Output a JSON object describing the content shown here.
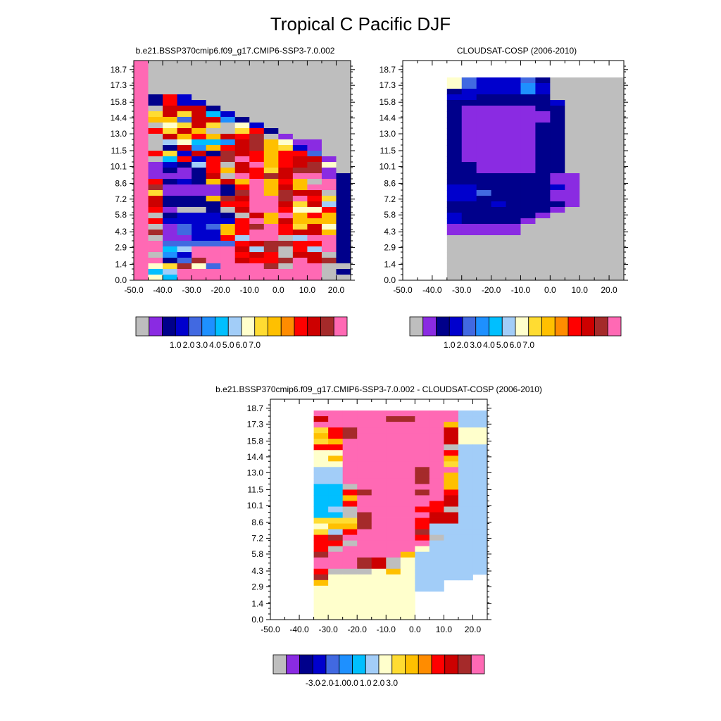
{
  "figure": {
    "title": "Tropical C Pacific DJF"
  },
  "palette": {
    "missing": "#bebebe",
    "colors": [
      "#8a2be2",
      "#00008b",
      "#0000cd",
      "#4169e1",
      "#1e90ff",
      "#00bfff",
      "#a2cdf8",
      "#ffffcc",
      "#ffdc32",
      "#ffc000",
      "#ff8c00",
      "#ff0000",
      "#cd0000",
      "#a52a2a",
      "#ff69b4"
    ]
  },
  "chart_data": [
    {
      "type": "heatmap",
      "panel": "model",
      "title": "b.e21.BSSP370cmip6.f09_g17.CMIP6-SSP3-7.0.002",
      "xlim": [
        -50,
        25
      ],
      "ylim": [
        0,
        19.5
      ],
      "xticks": [
        "-50.0",
        "-40.0",
        "-30.0",
        "-20.0",
        "-10.0",
        "0.0",
        "10.0",
        "20.0"
      ],
      "yticks": [
        "0.0",
        "1.4",
        "2.9",
        "4.3",
        "5.8",
        "7.2",
        "8.6",
        "10.1",
        "11.5",
        "13.0",
        "14.4",
        "15.8",
        "17.3",
        "18.7"
      ],
      "ytick_values": [
        0.0,
        1.4,
        2.9,
        4.3,
        5.8,
        7.2,
        8.6,
        10.1,
        11.5,
        13.0,
        14.4,
        15.8,
        17.3,
        18.7
      ],
      "x_edges": [
        -50,
        -45,
        -40,
        -35,
        -30,
        -25,
        -20,
        -15,
        -10,
        -5,
        0,
        5,
        10,
        15,
        20,
        25
      ],
      "y_edges": [
        0,
        0.5,
        1,
        1.5,
        2,
        2.5,
        3,
        3.5,
        4,
        4.5,
        5,
        5.5,
        6,
        6.5,
        7,
        7.5,
        8,
        8.5,
        9,
        9.5,
        10,
        10.5,
        11,
        11.5,
        12,
        12.5,
        13,
        13.5,
        14,
        14.5,
        15,
        15.5,
        16,
        16.5,
        17,
        17.5,
        18,
        18.5,
        19,
        19.5
      ],
      "grid": [
        "EAAAAAAAAAAAAAA",
        "EAAAAAAAAAAAAAA",
        "EAAAAAAAAAAAAAA",
        "EAAAAAAAAAAAAAA",
        "EAAAAAAAAAAAAAA",
        "EAAAAAAAAAAAAAA",
        "E1B2AAAAAAAAAAA",
        "E1B22AAAAAAAAAA",
        "EMCCC1AAAAAAAAA",
        "E8C8C52AAAAAAAA",
        "E993CC41AAAAAAA",
        "EA78C8A72AAAAAA",
        "EB8C9AA8B1AAAAA",
        "EAC9B9CBDA0AAAA",
        "EA67554CD9700AA",
        "EA1C49BCD9820AA",
        "EB82C1DCB9BB3AA",
        "EA5B2BDEB9BCC0A",
        "E0216BACE9BCD7A",
        "E0101B9CB8CDD0A",
        "E0001CAEBDCEE01",
        "EB1219C9E9B9AE1",
        "ED00001BE9C9EE1",
        "E800001DE9DCCA1",
        "EC1119DCEEDEB81",
        "EC1111BBEEC8C61",
        "EB0AA1ACEEB77B1",
        "EA12221AC9E9B91",
        "EB22222BE9C9991",
        "EA03239BDEB8C71",
        "ED03229BEEBCC91",
        "EA0022B6EEA6EE1",
        "EE33333BCDDBBE1",
        "EE56EEEC6DAB6E1",
        "EA42EEEBCBACCA1",
        "EE13DEECBBDECD1",
        "E78D73EEEDAEEAA",
        "E56EEEEEEEEEEA1",
        "E75EEEEEEEEEEAA"
      ],
      "colorbar": {
        "labels": [
          "1.0",
          "2.0",
          "3.0",
          "4.0",
          "5.0",
          "6.0",
          "7.0"
        ]
      }
    },
    {
      "type": "heatmap",
      "panel": "obs",
      "title": "CLOUDSAT-COSP (2006-2010)",
      "xlim": [
        -50,
        25
      ],
      "ylim": [
        0,
        19.5
      ],
      "xticks": [
        "-50.0",
        "-40.0",
        "-30.0",
        "-20.0",
        "-10.0",
        "0.0",
        "10.0",
        "20.0"
      ],
      "yticks": [
        "0.0",
        "1.4",
        "2.9",
        "4.3",
        "5.8",
        "7.2",
        "8.6",
        "10.1",
        "11.5",
        "13.0",
        "14.4",
        "15.8",
        "17.3",
        "18.7"
      ],
      "ytick_values": [
        0.0,
        1.4,
        2.9,
        4.3,
        5.8,
        7.2,
        8.6,
        10.1,
        11.5,
        13.0,
        14.4,
        15.8,
        17.3,
        18.7
      ],
      "x_edges": [
        -50,
        -45,
        -40,
        -35,
        -30,
        -25,
        -20,
        -15,
        -10,
        -5,
        0,
        5,
        10,
        15,
        20,
        25
      ],
      "y_edges": [
        0,
        0.5,
        1,
        1.5,
        2,
        2.5,
        3,
        3.5,
        4,
        4.5,
        5,
        5.5,
        6,
        6.5,
        7,
        7.5,
        8,
        8.5,
        9,
        9.5,
        10,
        10.5,
        11,
        11.5,
        12,
        12.5,
        13,
        13.5,
        14,
        14.5,
        15,
        15.5,
        16,
        16.5,
        17,
        17.5,
        18,
        18.5,
        19,
        19.5
      ],
      "grid": [
        "...............",
        "...............",
        "...............",
        "...7322231AAAAA",
        "...7322242AAAAA",
        "...1222242AAAAA",
        "...2211111AAAAA",
        "...11111112AAAA",
        "...10000011AAAA",
        "...10000001AAAA",
        "...10000001AAAA",
        "...10000011AAAA",
        "...10000011AAAA",
        "...10000011AAAA",
        "...10000011AAAA",
        "...10000011AAAA",
        "...10000011AAAA",
        "...10000011AAAA",
        "...11000011AAAA",
        "...11000011AAAA",
        "...111111100AAA",
        "...111111100AAA",
        "...221111120AAA",
        "...223111100AAA",
        "...221111100AAA",
        "...111211110AAA",
        "...11111110AAAA",
        "...2111110AAAAA",
        "...211110AAAAAA",
        "...00000AAAAAAA",
        "...00000AAAAAAA",
        "...AAAAAAAAAAAA",
        "...AAAAAAAAAAAA",
        "...AAAAAAAAAAAA",
        "...AAAAAAAAAAAA",
        "...AAAAAAAAAAAA",
        "...AAAAAAAAAAAA",
        "...AAAAAAAAAAAA",
        "...AAAAAAAAAAAA"
      ],
      "colorbar": {
        "labels": [
          "1.0",
          "2.0",
          "3.0",
          "4.0",
          "5.0",
          "6.0",
          "7.0"
        ]
      }
    },
    {
      "type": "heatmap",
      "panel": "difference",
      "title": "b.e21.BSSP370cmip6.f09_g17.CMIP6-SSP3-7.0.002 - CLOUDSAT-COSP (2006-2010)",
      "xlim": [
        -50,
        25
      ],
      "ylim": [
        0,
        19.5
      ],
      "xticks": [
        "-50.0",
        "-40.0",
        "-30.0",
        "-20.0",
        "-10.0",
        "0.0",
        "10.0",
        "20.0"
      ],
      "yticks": [
        "0.0",
        "1.4",
        "2.9",
        "4.3",
        "5.8",
        "7.2",
        "8.6",
        "10.1",
        "11.5",
        "13.0",
        "14.4",
        "15.8",
        "17.3",
        "18.7"
      ],
      "ytick_values": [
        0.0,
        1.4,
        2.9,
        4.3,
        5.8,
        7.2,
        8.6,
        10.1,
        11.5,
        13.0,
        14.4,
        15.8,
        17.3,
        18.7
      ],
      "x_edges": [
        -50,
        -45,
        -40,
        -35,
        -30,
        -25,
        -20,
        -15,
        -10,
        -5,
        0,
        5,
        10,
        15,
        20,
        25
      ],
      "y_edges": [
        0,
        0.5,
        1,
        1.5,
        2,
        2.5,
        3,
        3.5,
        4,
        4.5,
        5,
        5.5,
        6,
        6.5,
        7,
        7.5,
        8,
        8.5,
        9,
        9.5,
        10,
        10.5,
        11,
        11.5,
        12,
        12.5,
        13,
        13.5,
        14,
        14.5,
        15,
        15.5,
        16,
        16.5,
        17,
        17.5,
        18,
        18.5,
        19,
        19.5
      ],
      "grid": [
        "...............",
        "...............",
        "...EEEEEEEEEE66",
        "...CEEEEDDEEE66",
        "...EEEEEEEEE966",
        "...8BDEEEEEEC77",
        "...9BDEEEEEEC77",
        "...89EEEEEEEC77",
        "...BBEEEEEEEA66",
        "...77EEEEEEEB66",
        "...79EEEEEEE966",
        "...77EEEEEEE866",
        "...66EEEEEDEE66",
        "...66EEEEEDE966",
        "...66EEEEEDE966",
        "...55AEEEEEE966",
        "...55BDEEEDEB66",
        "...559EEEEEEC66",
        "...55BEEEEEBC66",
        "...56AEEEEBBA66",
        "...55ADEEEECC66",
        "...888DEEEBCC66",
        "...799DEEEB6666",
        "...86BEEEED6666",
        "...BDEEEEEBA666",
        "...BBAEEEEE6666",
        "...BAEEEEE76666",
        "...DEEEEE966666",
        "...EEEDCA766666",
        "...EEEDCA766666",
        "...BAAA79766666",
        "...D7777776666.",
        "...977777766...",
        "...777777766...",
        "...7777777.....",
        "...7777777.....",
        "...7777777.....",
        "...7777777.....",
        "...7777777....."
      ],
      "colorbar": {
        "labels": [
          "-3.0",
          "-2.0",
          "-1.0",
          "0.0",
          "1.0",
          "2.0",
          "3.0"
        ]
      }
    }
  ]
}
